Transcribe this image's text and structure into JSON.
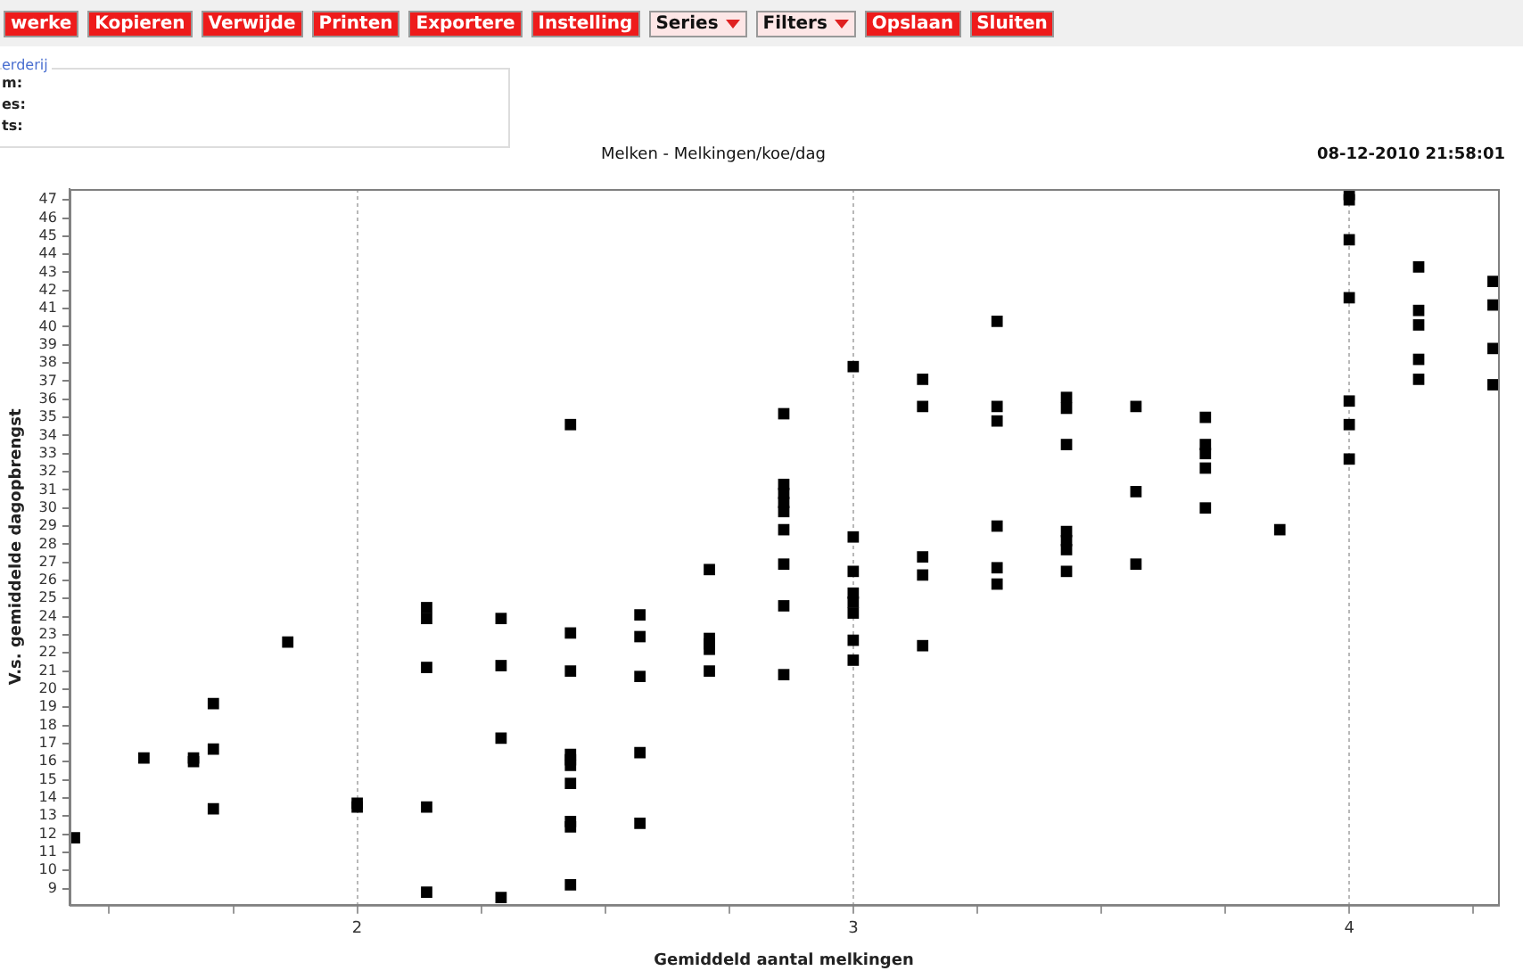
{
  "chart_data": {
    "type": "scatter",
    "title": "Melken - Melkingen/koe/dag",
    "subtitle": "08-12-2010 21:58:01",
    "xlabel": "Gemiddeld aantal melkingen",
    "ylabel": "V.s. gemiddelde dagopbrengst",
    "annotations": [
      "werke",
      "Kopieren",
      "Verwijde",
      "Printen",
      "Exportere",
      "Instelling",
      "Series",
      "Filters",
      "Opslaan",
      "Sluiten",
      "erderij",
      "m:",
      "es:",
      "ts:"
    ],
    "series": [
      {
        "color": "#000000",
        "x": [
          1.43,
          1.57,
          1.67,
          1.67,
          1.71,
          1.71,
          1.71,
          1.86,
          2,
          2,
          2.14,
          2.14,
          2.14,
          2.14,
          2.14,
          2.29,
          2.29,
          2.29,
          2.29,
          2.43,
          2.43,
          2.43,
          2.43,
          2.43,
          2.43,
          2.43,
          2.43,
          2.43,
          2.43,
          2.57,
          2.57,
          2.57,
          2.57,
          2.57,
          2.71,
          2.71,
          2.71,
          2.71,
          2.71,
          2.86,
          2.86,
          2.86,
          2.86,
          2.86,
          2.86,
          2.86,
          2.86,
          2.86,
          3,
          3,
          3,
          3,
          3,
          3,
          3,
          3,
          3.14,
          3.14,
          3.14,
          3.14,
          3.14,
          3.29,
          3.29,
          3.29,
          3.29,
          3.29,
          3.29,
          3.43,
          3.43,
          3.43,
          3.43,
          3.43,
          3.43,
          3.43,
          3.57,
          3.57,
          3.57,
          3.71,
          3.71,
          3.71,
          3.71,
          3.71,
          3.86,
          4,
          4,
          4,
          4,
          4,
          4,
          4,
          4.14,
          4.14,
          4.14,
          4.14,
          4.14,
          4.29,
          4.29,
          4.29,
          4.29
        ],
        "values": [
          11.8,
          16.2,
          16.2,
          16.0,
          19.2,
          16.7,
          13.4,
          22.6,
          13.7,
          13.5,
          24.5,
          23.9,
          21.2,
          13.5,
          8.8,
          23.9,
          21.3,
          17.3,
          8.5,
          34.6,
          23.1,
          21.0,
          16.4,
          16.1,
          15.8,
          14.8,
          12.7,
          12.4,
          9.2,
          24.1,
          22.9,
          20.7,
          16.5,
          12.6,
          26.6,
          22.8,
          22.5,
          22.2,
          21.0,
          35.2,
          31.3,
          30.8,
          30.3,
          29.8,
          28.8,
          26.9,
          24.6,
          20.8,
          37.8,
          28.4,
          26.5,
          25.3,
          24.8,
          24.2,
          22.7,
          21.6,
          37.1,
          35.6,
          27.3,
          26.3,
          22.4,
          40.3,
          35.6,
          34.8,
          29.0,
          26.7,
          25.8,
          36.1,
          35.5,
          33.5,
          28.7,
          28.2,
          27.7,
          26.5,
          35.6,
          30.9,
          26.9,
          35.0,
          33.5,
          33.0,
          32.2,
          30.0,
          28.8,
          47.3,
          47.0,
          44.8,
          41.6,
          35.9,
          34.6,
          32.7,
          43.3,
          40.9,
          40.1,
          38.2,
          37.1,
          42.5,
          41.2,
          38.8,
          36.8
        ]
      }
    ],
    "xlim": [
      1.42,
      4.3
    ],
    "ylim": [
      8.1,
      47.6
    ],
    "xticks": [
      {
        "value": 1.5,
        "label": null
      },
      {
        "value": 1.75,
        "label": null
      },
      2,
      {
        "value": 2.25,
        "label": null
      },
      {
        "value": 2.5,
        "label": null
      },
      {
        "value": 2.75,
        "label": null
      },
      3,
      {
        "value": 3.25,
        "label": null
      },
      {
        "value": 3.5,
        "label": null
      },
      {
        "value": 3.75,
        "label": null
      },
      4,
      {
        "value": 4.25,
        "label": null
      }
    ],
    "yticks": [
      9,
      10,
      11,
      12,
      13,
      14,
      15,
      16,
      17,
      18,
      19,
      20,
      21,
      22,
      23,
      24,
      25,
      26,
      27,
      28,
      29,
      30,
      31,
      32,
      33,
      34,
      35,
      36,
      37,
      38,
      39,
      40,
      41,
      42,
      43,
      44,
      45,
      46,
      47
    ],
    "grid": "x",
    "legend": false,
    "marker": "square"
  }
}
